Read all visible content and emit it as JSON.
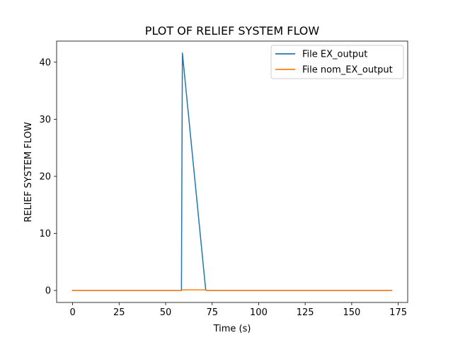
{
  "chart_data": {
    "type": "line",
    "title": "PLOT OF RELIEF SYSTEM FLOW",
    "xlabel": "Time (s)",
    "ylabel": "RELIEF SYSTEM FLOW",
    "xlim": [
      -8.6,
      180.1
    ],
    "ylim": [
      -2.1,
      43.7
    ],
    "xticks": [
      0,
      25,
      50,
      75,
      100,
      125,
      150,
      175
    ],
    "yticks": [
      0,
      10,
      20,
      30,
      40
    ],
    "grid": false,
    "legend_position": "top-right",
    "series": [
      {
        "name": "File EX_output",
        "color": "#1f77b4",
        "x": [
          0,
          58.5,
          58.6,
          59.0,
          71.5,
          72,
          171.5
        ],
        "y": [
          0,
          0,
          10,
          41.6,
          0.2,
          0,
          0
        ]
      },
      {
        "name": "File nom_EX_output",
        "color": "#ff7f0e",
        "x": [
          0,
          58.5,
          59,
          71.5,
          72,
          171.5
        ],
        "y": [
          0,
          0,
          0.1,
          0.1,
          0,
          0
        ]
      }
    ]
  }
}
